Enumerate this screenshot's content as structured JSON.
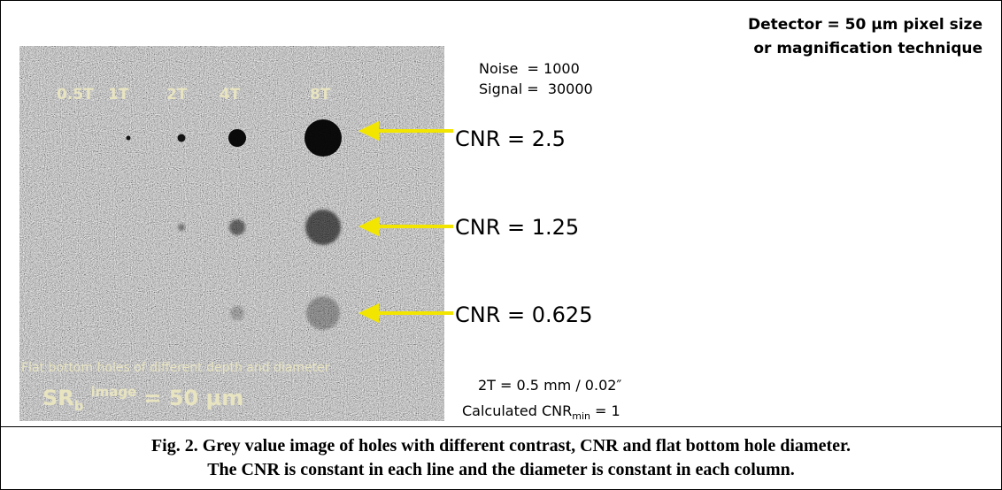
{
  "header": {
    "line1": "Detector = 50 µm pixel size",
    "line2": "or magnification technique"
  },
  "params": {
    "noise": "Noise  = 1000",
    "signal": "Signal =  30000"
  },
  "image": {
    "columns": [
      "0.5T",
      "1T",
      "2T",
      "4T",
      "8T"
    ],
    "caption": "Flat bottom holes of different depth and diameter",
    "resolution": {
      "main": "SR",
      "sub": "b",
      "sup": "image",
      "rest": "= 50 µm"
    }
  },
  "cnr_labels": [
    "CNR = 2.5",
    "CNR = 1.25",
    "CNR = 0.625"
  ],
  "notes": {
    "hole": "2T = 0.5 mm / 0.02″",
    "calc_main": "Calculated CNR",
    "calc_sub": "min",
    "calc_rest": "= 1"
  },
  "caption": {
    "line1": "Fig. 2. Grey value image of holes with different contrast, CNR and flat bottom hole diameter.",
    "line2": "The CNR is constant in each line and the diameter is constant in each column."
  }
}
